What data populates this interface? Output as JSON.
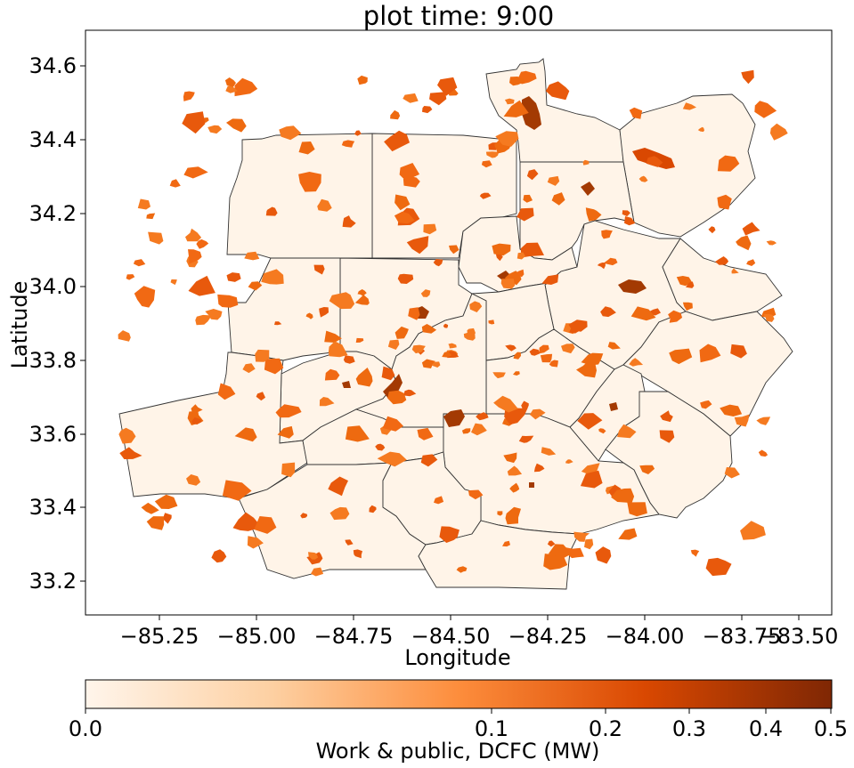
{
  "chart_data": {
    "type": "choropleth-map",
    "title": "plot time: 9:00",
    "xlabel": "Longitude",
    "ylabel": "Latitude",
    "xlim": [
      -85.45,
      -83.45
    ],
    "ylim": [
      33.1,
      34.69
    ],
    "x_ticks": [
      -85.25,
      -85.0,
      -84.75,
      -84.5,
      -84.25,
      -84.0,
      -83.75,
      -83.5
    ],
    "x_tick_labels": [
      "−85.25",
      "−85.00",
      "−84.75",
      "−84.50",
      "−84.25",
      "−84.00",
      "−83.75",
      "−83.50"
    ],
    "y_ticks": [
      33.2,
      33.4,
      33.6,
      33.8,
      34.0,
      34.2,
      34.4,
      34.6
    ],
    "y_tick_labels": [
      "33.2",
      "33.4",
      "33.6",
      "33.8",
      "34.0",
      "34.2",
      "34.4",
      "34.6"
    ],
    "colorbar": {
      "label": "Work & public, DCFC (MW)",
      "scale": "power-law",
      "ticks": [
        0.0,
        0.1,
        0.2,
        0.3,
        0.4,
        0.5
      ],
      "tick_labels": [
        "0.0",
        "0.1",
        "0.2",
        "0.3",
        "0.4",
        "0.5"
      ],
      "colors": [
        "#fff5eb",
        "#fdd0a2",
        "#fd8d3c",
        "#d94801",
        "#7f2704"
      ]
    },
    "grid": false,
    "legend": "colorbar-bottom"
  }
}
